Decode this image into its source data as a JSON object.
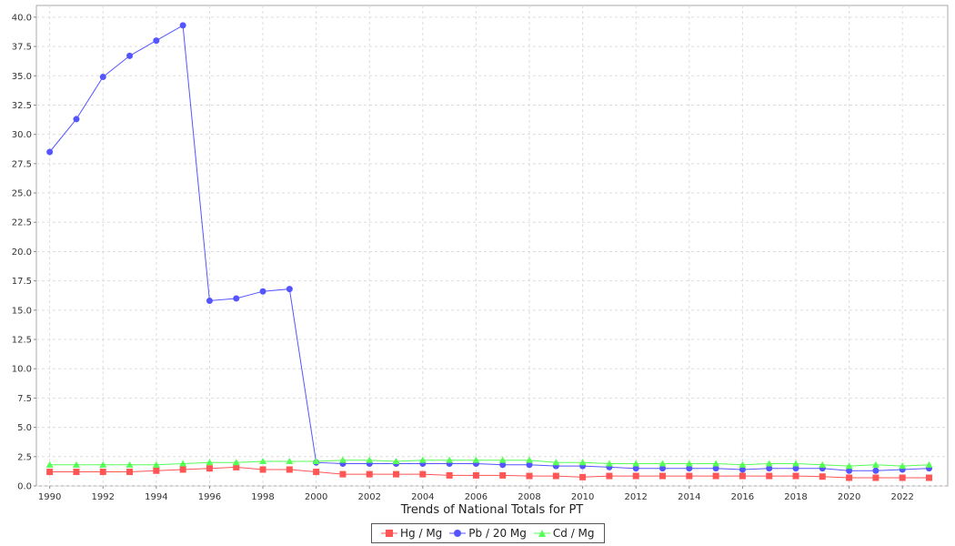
{
  "chart_data": {
    "type": "line",
    "xlabel": "Trends of National Totals for PT",
    "ylabel": "",
    "x": [
      1990,
      1991,
      1992,
      1993,
      1994,
      1995,
      1996,
      1997,
      1998,
      1999,
      2000,
      2001,
      2002,
      2003,
      2004,
      2005,
      2006,
      2007,
      2008,
      2009,
      2010,
      2011,
      2012,
      2013,
      2014,
      2015,
      2016,
      2017,
      2018,
      2019,
      2020,
      2021,
      2022,
      2023
    ],
    "xlim": [
      1989.5,
      2023.7
    ],
    "xticks": [
      "1990",
      "1992",
      "1994",
      "1996",
      "1998",
      "2000",
      "2002",
      "2004",
      "2006",
      "2008",
      "2010",
      "2012",
      "2014",
      "2016",
      "2018",
      "2020",
      "2022"
    ],
    "ylim": [
      0,
      41
    ],
    "yticks": [
      "0.0",
      "2.5",
      "5.0",
      "7.5",
      "10.0",
      "12.5",
      "15.0",
      "17.5",
      "20.0",
      "22.5",
      "25.0",
      "27.5",
      "30.0",
      "32.5",
      "35.0",
      "37.5",
      "40.0"
    ],
    "grid": true,
    "legend_position": "bottom",
    "series": [
      {
        "name": "Hg / Mg",
        "color": "#ff5555",
        "marker": "square",
        "values": [
          1.2,
          1.2,
          1.2,
          1.2,
          1.3,
          1.4,
          1.5,
          1.6,
          1.4,
          1.4,
          1.2,
          1.0,
          1.0,
          1.0,
          1.0,
          0.9,
          0.9,
          0.9,
          0.85,
          0.85,
          0.75,
          0.85,
          0.85,
          0.85,
          0.85,
          0.85,
          0.85,
          0.85,
          0.85,
          0.8,
          0.7,
          0.7,
          0.7,
          0.7
        ]
      },
      {
        "name": "Pb / 20 Mg",
        "color": "#5555ff",
        "marker": "circle",
        "values": [
          28.5,
          31.3,
          34.9,
          36.7,
          38.0,
          39.3,
          15.8,
          16.0,
          16.6,
          16.8,
          2.0,
          1.9,
          1.9,
          1.9,
          1.9,
          1.9,
          1.9,
          1.8,
          1.8,
          1.7,
          1.7,
          1.6,
          1.5,
          1.5,
          1.5,
          1.5,
          1.4,
          1.5,
          1.5,
          1.5,
          1.3,
          1.3,
          1.4,
          1.5
        ]
      },
      {
        "name": "Cd / Mg",
        "color": "#55ff55",
        "marker": "triangle",
        "values": [
          1.8,
          1.8,
          1.8,
          1.8,
          1.8,
          1.9,
          2.0,
          2.0,
          2.1,
          2.1,
          2.1,
          2.2,
          2.2,
          2.1,
          2.2,
          2.2,
          2.2,
          2.2,
          2.2,
          2.0,
          2.0,
          1.9,
          1.9,
          1.9,
          1.9,
          1.9,
          1.8,
          1.9,
          1.9,
          1.8,
          1.7,
          1.8,
          1.7,
          1.8
        ]
      }
    ]
  }
}
